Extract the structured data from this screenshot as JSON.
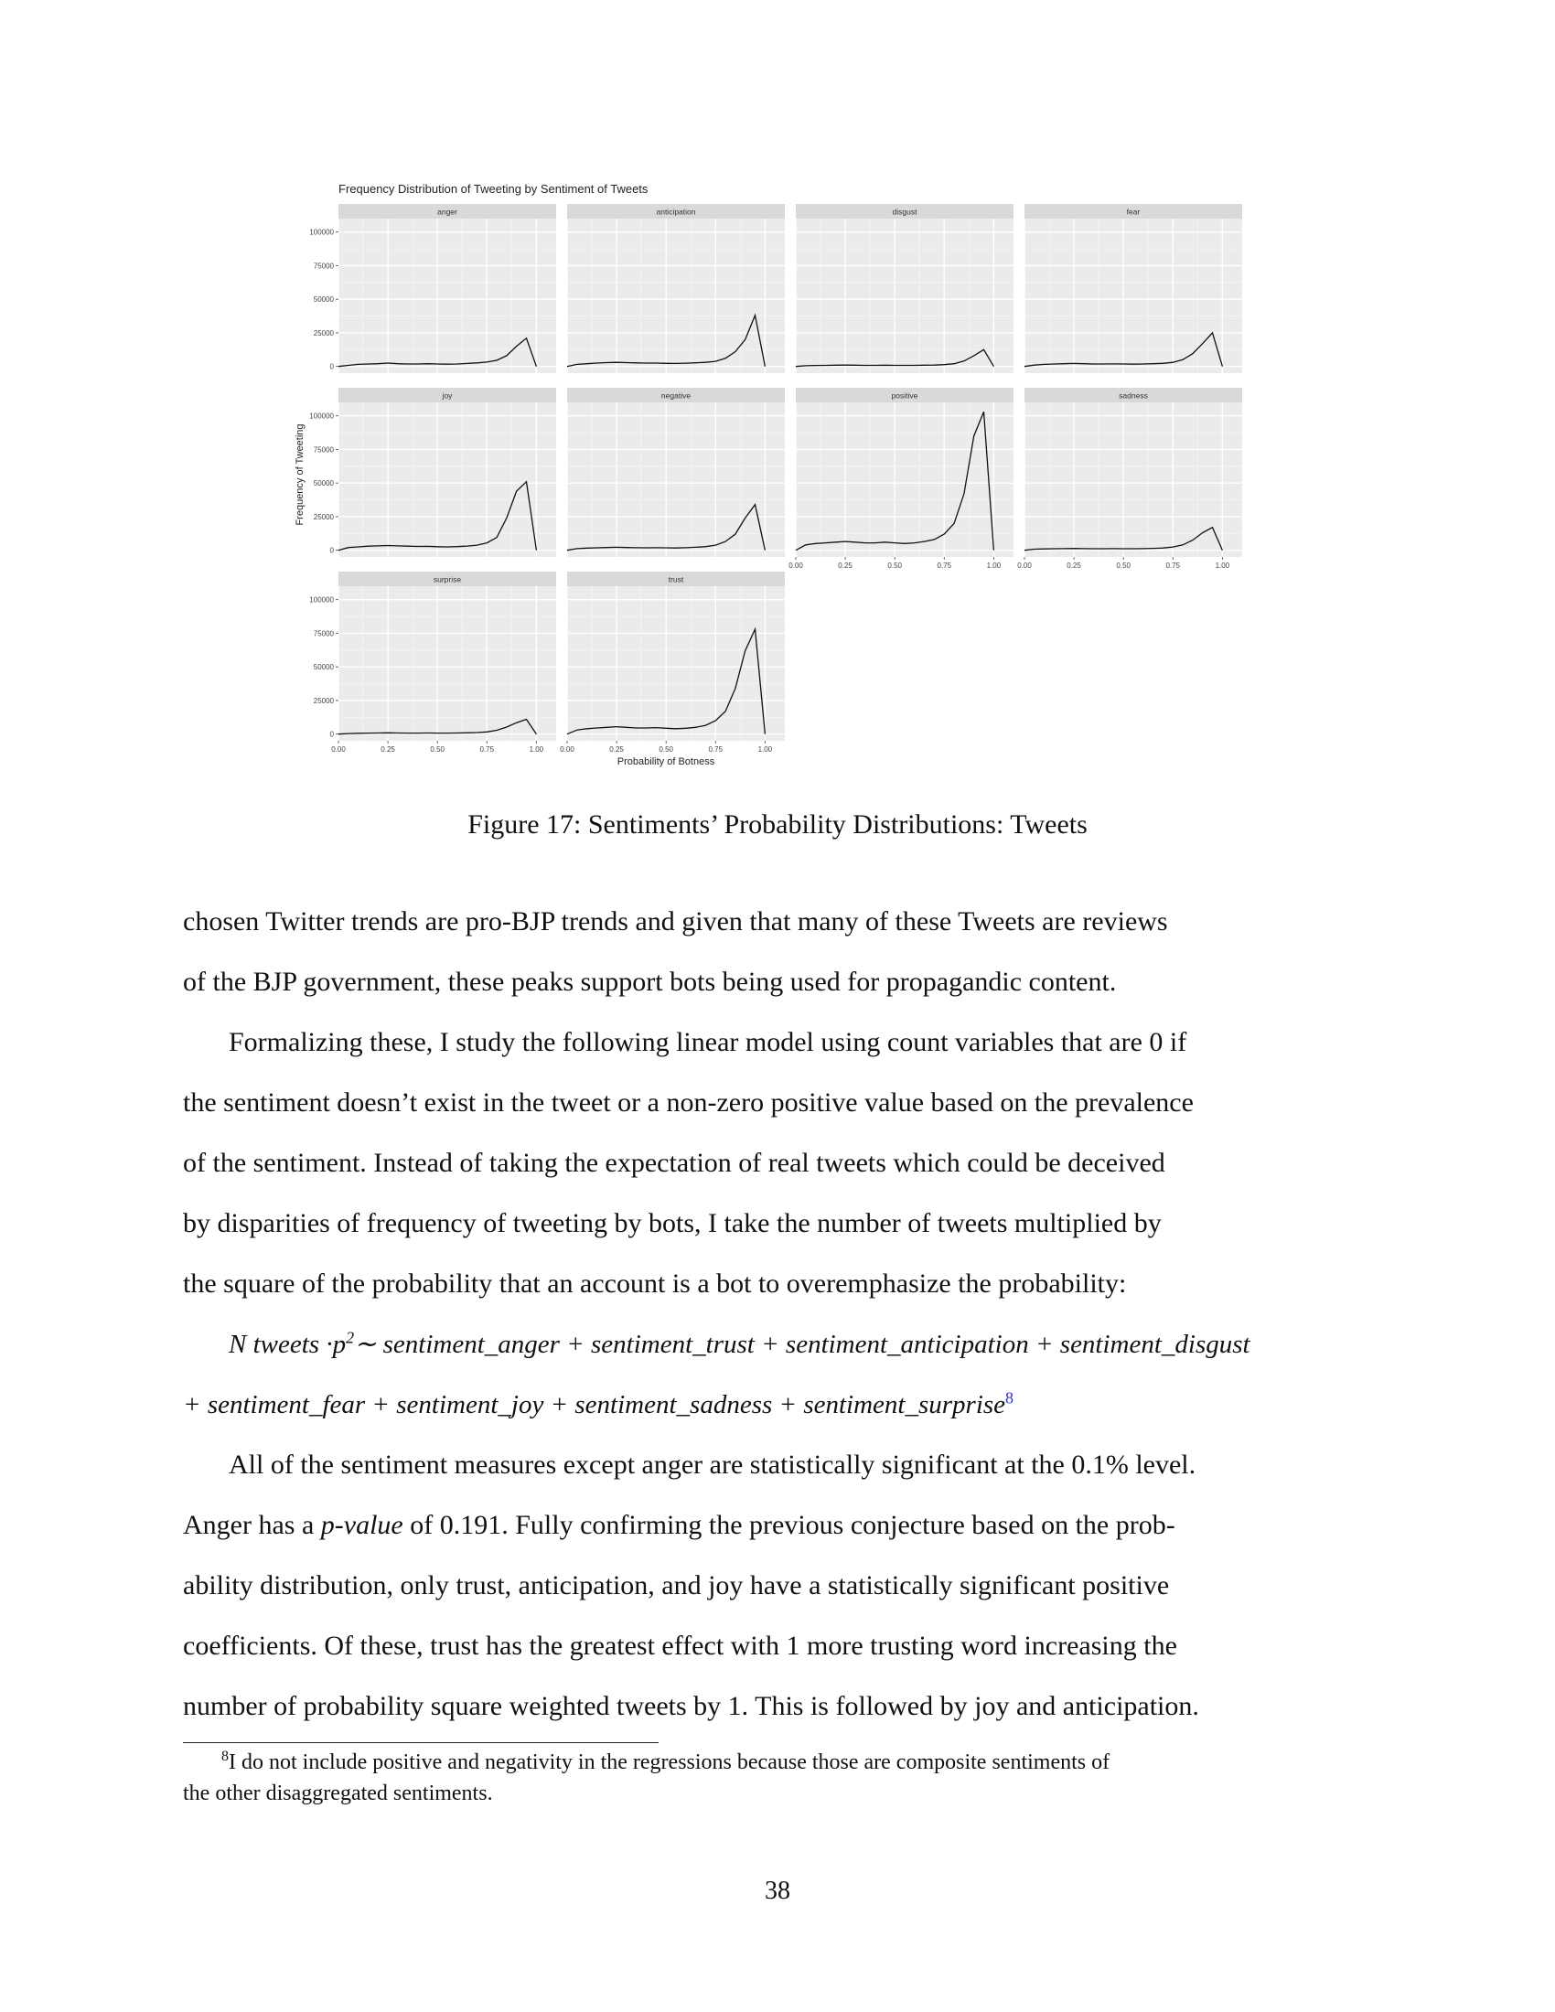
{
  "figure": {
    "caption": "Figure 17: Sentiments’ Probability Distributions: Tweets"
  },
  "chart_data": {
    "type": "line",
    "title": "Frequency Distribution of Tweeting by Sentiment of Tweets",
    "xlabel": "Probability of Botness",
    "ylabel": "Frequency of Tweeting",
    "xlim": [
      0,
      1.1
    ],
    "ylim": [
      -5000,
      110000
    ],
    "x_ticks": [
      "0.00",
      "0.25",
      "0.50",
      "0.75",
      "1.00"
    ],
    "y_ticks": [
      "0",
      "25000",
      "50000",
      "75000",
      "100000"
    ],
    "grid": true,
    "x": [
      0.0,
      0.05,
      0.1,
      0.15,
      0.2,
      0.25,
      0.3,
      0.35,
      0.4,
      0.45,
      0.5,
      0.55,
      0.6,
      0.65,
      0.7,
      0.75,
      0.8,
      0.85,
      0.9,
      0.95,
      1.0
    ],
    "series": [
      {
        "name": "anger",
        "values": [
          0,
          800,
          1500,
          1800,
          2000,
          2500,
          2000,
          1800,
          1800,
          2000,
          1800,
          1700,
          1800,
          2200,
          2600,
          3200,
          4500,
          8000,
          15000,
          21000,
          0
        ]
      },
      {
        "name": "anticipation",
        "values": [
          0,
          1500,
          2000,
          2500,
          2800,
          3000,
          2800,
          2600,
          2500,
          2500,
          2300,
          2200,
          2400,
          2700,
          3000,
          3800,
          6000,
          11000,
          20000,
          38000,
          0
        ]
      },
      {
        "name": "disgust",
        "values": [
          0,
          500,
          700,
          800,
          900,
          1000,
          900,
          800,
          800,
          900,
          800,
          800,
          800,
          900,
          1000,
          1300,
          2000,
          4000,
          8000,
          12500,
          0
        ]
      },
      {
        "name": "fear",
        "values": [
          0,
          1000,
          1500,
          1800,
          2000,
          2200,
          2000,
          1800,
          1800,
          1900,
          1800,
          1700,
          1800,
          2000,
          2300,
          3000,
          5000,
          9500,
          17000,
          25000,
          0
        ]
      },
      {
        "name": "joy",
        "values": [
          0,
          2000,
          2500,
          3000,
          3200,
          3500,
          3200,
          3000,
          2800,
          2900,
          2600,
          2500,
          2700,
          3100,
          3800,
          5500,
          9500,
          24000,
          44000,
          51000,
          0
        ]
      },
      {
        "name": "negative",
        "values": [
          0,
          1200,
          1600,
          1800,
          2000,
          2200,
          2000,
          1900,
          1800,
          1900,
          1800,
          1700,
          1900,
          2200,
          2700,
          3800,
          6500,
          12000,
          24000,
          34000,
          0
        ]
      },
      {
        "name": "positive",
        "values": [
          0,
          4000,
          5000,
          5500,
          6000,
          6500,
          6000,
          5500,
          5500,
          6000,
          5500,
          5000,
          5500,
          6500,
          8000,
          12000,
          20000,
          42000,
          85000,
          103000,
          0
        ]
      },
      {
        "name": "sadness",
        "values": [
          0,
          800,
          1000,
          1100,
          1200,
          1300,
          1200,
          1100,
          1100,
          1200,
          1100,
          1100,
          1200,
          1400,
          1700,
          2400,
          4000,
          7500,
          13000,
          17000,
          0
        ]
      },
      {
        "name": "surprise",
        "values": [
          0,
          400,
          600,
          700,
          800,
          900,
          800,
          700,
          700,
          800,
          700,
          700,
          800,
          900,
          1100,
          1600,
          2800,
          5200,
          8500,
          11000,
          0
        ]
      },
      {
        "name": "trust",
        "values": [
          0,
          3000,
          4000,
          4500,
          5000,
          5500,
          5000,
          4500,
          4500,
          4800,
          4300,
          4000,
          4300,
          5000,
          6500,
          10000,
          17000,
          34000,
          62000,
          78000,
          0
        ]
      }
    ]
  },
  "paragraphs": {
    "p1": [
      "chosen Twitter trends are pro-BJP trends and given that many of these Tweets are reviews",
      "of the BJP government, these peaks support bots being used for propagandic content."
    ],
    "p2": [
      "Formalizing these, I study the following linear model using count variables that are 0 if",
      "the sentiment doesn’t exist in the tweet or a non-zero positive value based on the prevalence",
      "of the sentiment. Instead of taking the expectation of real tweets which could be deceived",
      "by disparities of frequency of tweeting by bots, I take the number of tweets multiplied by",
      "the square of the probability that an account is a bot to overemphasize the probability:"
    ],
    "eq1_a": "N tweets ·p",
    "eq1_sup": "2",
    "eq1_b": "∼ sentiment_anger + sentiment_trust + sentiment_anticipation + sentiment_disgust",
    "eq2": "+ sentiment_fear + sentiment_joy + sentiment_sadness + sentiment_surprise",
    "eq2_fn": "8",
    "p3_l1": "All of the sentiment measures except anger are statistically significant at the 0.1% level.",
    "p3_l2a": "Anger has a ",
    "p3_l2b": "p-value",
    "p3_l2c": " of 0.191. Fully confirming the previous conjecture based on the prob-",
    "p3": [
      "ability distribution, only trust, anticipation, and joy have a statistically significant positive",
      "coefficients. Of these, trust has the greatest effect with 1 more trusting word increasing the",
      "number of probability square weighted tweets by 1. This is followed by joy and anticipation."
    ]
  },
  "footnote": {
    "mark": "8",
    "line1": "I do not include positive and negativity in the regressions because those are composite sentiments of",
    "line2": "the other disaggregated sentiments."
  },
  "page_number": "38"
}
